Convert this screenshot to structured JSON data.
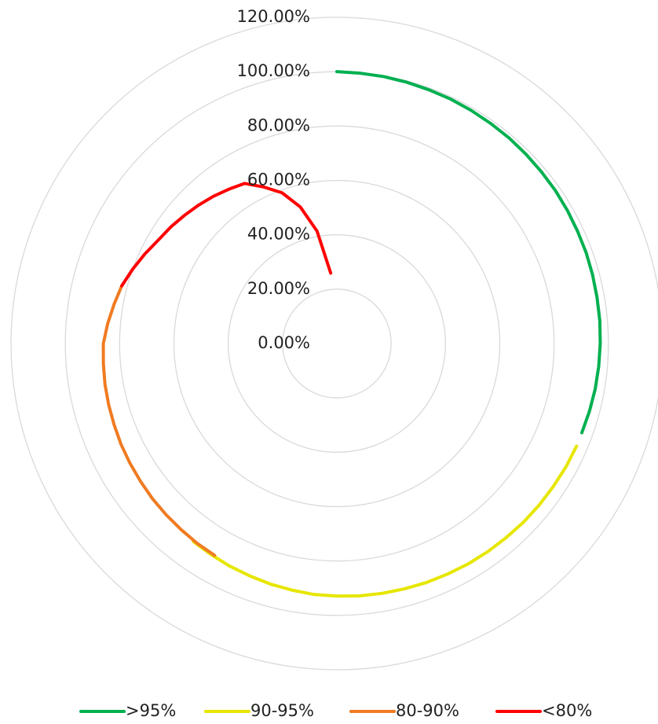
{
  "chart_data": {
    "type": "radar",
    "ylim": [
      0,
      120
    ],
    "yticks": [
      {
        "value": 0,
        "label": "0.00%"
      },
      {
        "value": 20,
        "label": "20.00%"
      },
      {
        "value": 40,
        "label": "40.00%"
      },
      {
        "value": 60,
        "label": "60.00%"
      },
      {
        "value": 80,
        "label": "80.00%"
      },
      {
        "value": 100,
        "label": "100.00%"
      },
      {
        "value": 120,
        "label": "120.00%"
      }
    ],
    "grid": true,
    "legend": "bottom",
    "series": [
      {
        "name": ">95%",
        "color": "#00b050",
        "values": [
          100,
          99.8,
          99.7,
          99.5,
          99.3,
          99.2,
          99.0,
          98.8,
          98.7,
          98.5,
          98.3,
          98.2,
          98.0,
          97.8,
          97.7,
          97.5,
          97.3,
          97.2,
          97.0,
          96.8,
          96.6,
          96.3,
          96.0,
          null,
          null,
          null,
          null,
          null,
          null,
          null,
          null,
          null,
          null,
          null,
          null,
          null,
          null,
          null,
          null,
          null,
          null,
          null,
          null,
          null,
          null,
          null,
          null,
          null,
          null,
          null,
          null,
          null,
          null,
          null,
          null,
          null,
          null,
          null,
          null,
          null,
          null,
          null,
          null,
          null,
          null,
          null,
          null,
          null,
          null,
          null,
          null,
          null
        ]
      },
      {
        "name": "90-95%",
        "color": "#e6e600",
        "values": [
          null,
          null,
          null,
          null,
          null,
          null,
          null,
          null,
          null,
          null,
          null,
          null,
          null,
          null,
          null,
          null,
          null,
          null,
          null,
          null,
          null,
          null,
          96.0,
          95.8,
          95.5,
          95.3,
          95.1,
          94.8,
          94.6,
          94.4,
          94.1,
          93.9,
          93.6,
          93.4,
          93.2,
          92.9,
          92.7,
          92.2,
          91.8,
          91.3,
          90.9,
          90.4,
          90.0,
          null,
          null,
          null,
          null,
          null,
          null,
          null,
          null,
          null,
          null,
          null,
          null,
          null,
          null,
          null,
          null,
          null,
          null,
          null,
          null,
          null,
          null,
          null,
          null,
          null,
          null,
          null
        ]
      },
      {
        "name": "80-90%",
        "color": "#f07b22",
        "values": [
          null,
          null,
          null,
          null,
          null,
          null,
          null,
          null,
          null,
          null,
          null,
          null,
          null,
          null,
          null,
          null,
          null,
          null,
          null,
          null,
          null,
          null,
          null,
          null,
          null,
          null,
          null,
          null,
          null,
          null,
          null,
          null,
          null,
          null,
          null,
          null,
          null,
          null,
          null,
          null,
          null,
          null,
          90.0,
          89.7,
          89.3,
          89.0,
          88.7,
          88.3,
          88.0,
          87.7,
          87.3,
          87.0,
          86.7,
          86.3,
          86.0,
          84.7,
          83.3,
          82.0,
          null,
          null,
          null,
          null,
          null,
          null,
          null,
          null,
          null,
          null,
          null,
          null,
          null,
          null
        ]
      },
      {
        "name": "<80%",
        "color": "#ff0000",
        "values": [
          null,
          null,
          null,
          null,
          null,
          null,
          null,
          null,
          null,
          null,
          null,
          null,
          null,
          null,
          null,
          null,
          null,
          null,
          null,
          null,
          null,
          null,
          null,
          null,
          null,
          null,
          null,
          null,
          null,
          null,
          null,
          null,
          null,
          null,
          null,
          null,
          null,
          null,
          null,
          null,
          null,
          null,
          null,
          null,
          null,
          null,
          null,
          null,
          null,
          null,
          null,
          null,
          null,
          null,
          null,
          null,
          null,
          82.0,
          80,
          78,
          76,
          74.7,
          73.3,
          72,
          70.7,
          69.3,
          68,
          63.5,
          59,
          52,
          42,
          26
        ]
      }
    ]
  }
}
